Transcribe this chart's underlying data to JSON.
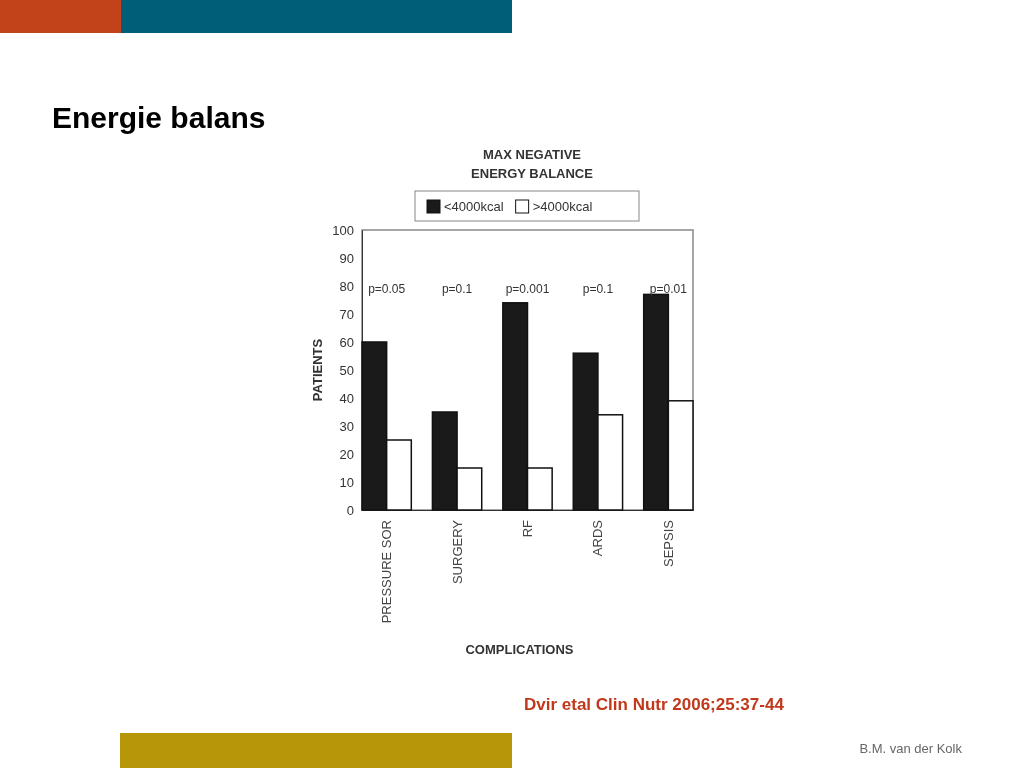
{
  "chart_data": {
    "type": "bar",
    "title": "Energie balans",
    "subtitle": "MAX NEGATIVE ENERGY BALANCE",
    "xlabel": "COMPLICATIONS",
    "ylabel": "PATIENTS",
    "categories": [
      "PRESSURE SOR",
      "SURGERY",
      "RF",
      "ARDS",
      "SEPSIS"
    ],
    "series": [
      {
        "name": "<4000kcal",
        "color": "#1a1a1a",
        "values": [
          60,
          35,
          74,
          56,
          77
        ]
      },
      {
        "name": ">4000kcal",
        "color": "#ffffff",
        "values": [
          25,
          15,
          15,
          34,
          39
        ]
      }
    ],
    "ylim": [
      0,
      100
    ],
    "yticks": [
      0,
      10,
      20,
      30,
      40,
      50,
      60,
      70,
      80,
      90,
      100
    ],
    "legend": "top",
    "annotations": [
      "p=0.05",
      "p=0.1",
      "p=0.001",
      "p=0.1",
      "p=0.01",
      "Dvir etal Clin Nutr 2006;25:37-44",
      "B.M. van der Kolk"
    ]
  }
}
